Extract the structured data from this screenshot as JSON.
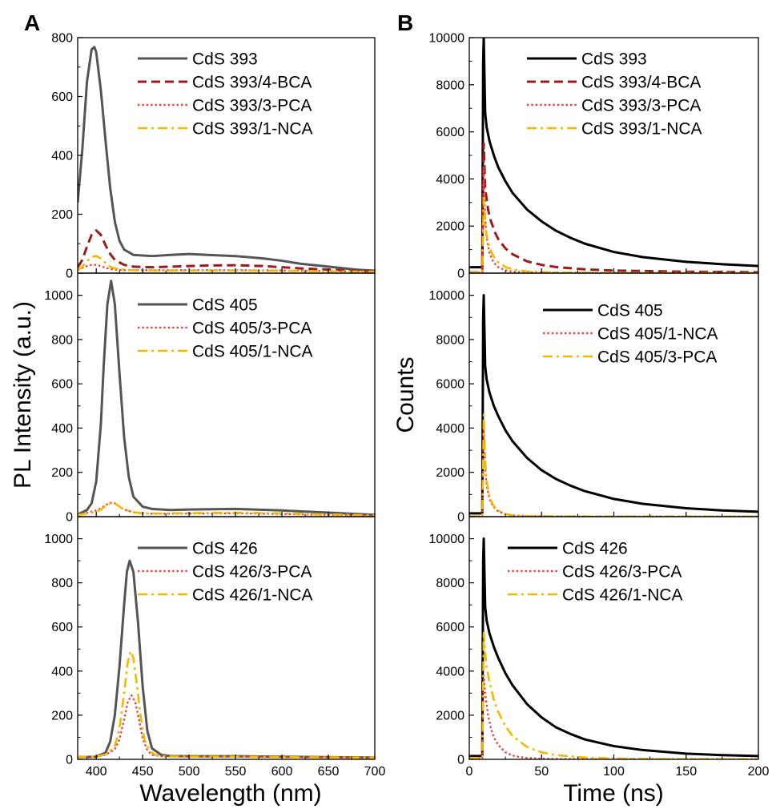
{
  "figure": {
    "panel_letters": [
      "A",
      "B"
    ],
    "left_ylabel": "PL Intensity (a.u.)",
    "right_ylabel": "Counts",
    "left_xlabel": "Wavelength (nm)",
    "right_xlabel": "Time (ns)"
  },
  "chart_data": [
    {
      "panel": "A-top",
      "type": "line",
      "xlabel": "Wavelength (nm)",
      "ylabel": "PL Intensity (a.u.)",
      "xlim": [
        380,
        700
      ],
      "ylim": [
        0,
        800
      ],
      "xticks": [
        400,
        450,
        500,
        550,
        600,
        650,
        700
      ],
      "yticks": [
        0,
        200,
        400,
        600,
        800
      ],
      "legend_position": "top-right",
      "series": [
        {
          "name": "CdS 393",
          "color": "#555555",
          "dash": "solid",
          "x": [
            380,
            385,
            390,
            395,
            398,
            400,
            405,
            410,
            415,
            420,
            425,
            430,
            440,
            460,
            480,
            500,
            520,
            550,
            580,
            600,
            620,
            650,
            680,
            700
          ],
          "y": [
            240,
            420,
            650,
            760,
            768,
            750,
            620,
            450,
            290,
            175,
            110,
            80,
            62,
            58,
            62,
            65,
            62,
            58,
            50,
            42,
            32,
            22,
            12,
            8
          ]
        },
        {
          "name": "CdS 393/4-BCA",
          "color": "#9b1c1c",
          "dash": "dash",
          "x": [
            380,
            385,
            390,
            395,
            400,
            405,
            410,
            415,
            420,
            430,
            440,
            460,
            480,
            500,
            520,
            550,
            580,
            600,
            620,
            650,
            680,
            700
          ],
          "y": [
            20,
            45,
            90,
            130,
            145,
            130,
            95,
            65,
            45,
            28,
            22,
            20,
            22,
            24,
            26,
            27,
            24,
            20,
            16,
            12,
            8,
            6
          ]
        },
        {
          "name": "CdS 393/3-PCA",
          "color": "#e8433a",
          "dash": "dot",
          "x": [
            380,
            385,
            390,
            395,
            400,
            405,
            410,
            415,
            420,
            430,
            440,
            460,
            500,
            550,
            600,
            650,
            700
          ],
          "y": [
            12,
            18,
            24,
            28,
            28,
            24,
            18,
            14,
            12,
            10,
            10,
            10,
            10,
            10,
            9,
            7,
            5
          ]
        },
        {
          "name": "CdS 393/1-NCA",
          "color": "#f5b800",
          "dash": "dashdot",
          "x": [
            380,
            385,
            390,
            395,
            400,
            405,
            410,
            415,
            420,
            430,
            440,
            460,
            500,
            550,
            600,
            650,
            700
          ],
          "y": [
            10,
            22,
            40,
            55,
            58,
            50,
            35,
            22,
            16,
            12,
            10,
            9,
            9,
            9,
            8,
            6,
            5
          ]
        }
      ]
    },
    {
      "panel": "A-middle",
      "type": "line",
      "xlabel": "Wavelength (nm)",
      "ylabel": "PL Intensity (a.u.)",
      "xlim": [
        380,
        700
      ],
      "ylim": [
        0,
        1100
      ],
      "xticks": [
        400,
        450,
        500,
        550,
        600,
        650,
        700
      ],
      "yticks": [
        0,
        200,
        400,
        600,
        800,
        1000
      ],
      "legend_position": "top-right",
      "series": [
        {
          "name": "CdS 405",
          "color": "#555555",
          "dash": "solid",
          "x": [
            380,
            390,
            395,
            400,
            405,
            408,
            412,
            416,
            420,
            425,
            430,
            435,
            440,
            450,
            460,
            480,
            500,
            550,
            600,
            650,
            680,
            700
          ],
          "y": [
            10,
            30,
            60,
            160,
            420,
            680,
            960,
            1065,
            960,
            650,
            360,
            180,
            90,
            45,
            35,
            30,
            32,
            35,
            28,
            18,
            12,
            8
          ]
        },
        {
          "name": "CdS 405/3-PCA",
          "color": "#e8433a",
          "dash": "dot",
          "x": [
            380,
            390,
            400,
            405,
            410,
            415,
            418,
            422,
            426,
            430,
            440,
            450,
            460,
            500,
            550,
            600,
            650,
            700
          ],
          "y": [
            10,
            18,
            28,
            38,
            52,
            62,
            64,
            56,
            42,
            32,
            20,
            15,
            13,
            14,
            15,
            12,
            8,
            5
          ]
        },
        {
          "name": "CdS 405/1-NCA",
          "color": "#f5b800",
          "dash": "dashdot",
          "x": [
            380,
            390,
            400,
            405,
            410,
            415,
            418,
            422,
            426,
            430,
            440,
            450,
            460,
            500,
            550,
            600,
            650,
            700
          ],
          "y": [
            8,
            14,
            22,
            32,
            48,
            60,
            62,
            55,
            42,
            32,
            20,
            15,
            14,
            16,
            18,
            15,
            10,
            6
          ]
        }
      ]
    },
    {
      "panel": "A-bottom",
      "type": "line",
      "xlabel": "Wavelength (nm)",
      "ylabel": "PL Intensity (a.u.)",
      "xlim": [
        380,
        700
      ],
      "ylim": [
        0,
        1100
      ],
      "xticks": [
        400,
        450,
        500,
        550,
        600,
        650,
        700
      ],
      "yticks": [
        0,
        200,
        400,
        600,
        800,
        1000
      ],
      "legend_position": "top-right",
      "series": [
        {
          "name": "CdS 426",
          "color": "#555555",
          "dash": "solid",
          "x": [
            380,
            400,
            410,
            415,
            420,
            425,
            430,
            433,
            436,
            440,
            445,
            450,
            455,
            460,
            470,
            480,
            500,
            550,
            600,
            650,
            700
          ],
          "y": [
            10,
            12,
            30,
            80,
            200,
            420,
            700,
            850,
            900,
            850,
            620,
            330,
            130,
            50,
            20,
            15,
            14,
            14,
            12,
            10,
            8
          ]
        },
        {
          "name": "CdS 426/3-PCA",
          "color": "#e8433a",
          "dash": "dot",
          "x": [
            380,
            400,
            410,
            420,
            425,
            430,
            434,
            438,
            442,
            446,
            450,
            455,
            460,
            470,
            480,
            500,
            550,
            600,
            650,
            700
          ],
          "y": [
            10,
            12,
            20,
            45,
            90,
            180,
            260,
            290,
            260,
            180,
            95,
            40,
            20,
            14,
            12,
            12,
            12,
            10,
            9,
            8
          ]
        },
        {
          "name": "CdS 426/1-NCA",
          "color": "#f5b800",
          "dash": "dashdot",
          "x": [
            380,
            400,
            410,
            420,
            425,
            430,
            434,
            437,
            440,
            444,
            448,
            452,
            458,
            465,
            475,
            500,
            550,
            600,
            650,
            700
          ],
          "y": [
            10,
            12,
            22,
            60,
            140,
            300,
            440,
            490,
            460,
            330,
            190,
            90,
            35,
            18,
            13,
            12,
            12,
            10,
            9,
            8
          ]
        }
      ]
    },
    {
      "panel": "B-top",
      "type": "line",
      "xlabel": "Time (ns)",
      "ylabel": "Counts",
      "xlim": [
        0,
        200
      ],
      "ylim": [
        0,
        10000
      ],
      "xticks": [
        0,
        50,
        100,
        150,
        200
      ],
      "yticks": [
        0,
        2000,
        4000,
        6000,
        8000,
        10000
      ],
      "legend_position": "top-right",
      "series": [
        {
          "name": "CdS 393",
          "color": "#000000",
          "dash": "solid",
          "x": [
            0,
            9,
            9.6,
            10,
            11,
            12,
            14,
            17,
            20,
            25,
            30,
            40,
            50,
            60,
            70,
            80,
            100,
            120,
            150,
            175,
            200
          ],
          "y": [
            250,
            250,
            9000,
            10000,
            6800,
            6200,
            5600,
            5000,
            4500,
            3900,
            3400,
            2700,
            2200,
            1800,
            1500,
            1250,
            900,
            680,
            480,
            380,
            300
          ]
        },
        {
          "name": "CdS 393/4-BCA",
          "color": "#9b1c1c",
          "dash": "dash",
          "x": [
            0,
            9,
            10,
            11,
            13,
            15,
            18,
            20,
            25,
            30,
            40,
            50,
            60,
            80,
            100,
            150,
            200
          ],
          "y": [
            30,
            30,
            5500,
            3600,
            2700,
            2200,
            1700,
            1450,
            1050,
            800,
            500,
            350,
            260,
            160,
            110,
            60,
            40
          ]
        },
        {
          "name": "CdS 393/3-PCA",
          "color": "#e8433a",
          "dash": "dot",
          "x": [
            0,
            9,
            10,
            11,
            12,
            14,
            16,
            18,
            20,
            25,
            30,
            40,
            60,
            100,
            150,
            200
          ],
          "y": [
            20,
            20,
            4500,
            2400,
            1500,
            850,
            560,
            380,
            260,
            120,
            60,
            30,
            15,
            8,
            5,
            4
          ]
        },
        {
          "name": "CdS 393/1-NCA",
          "color": "#f5b800",
          "dash": "dashdot",
          "x": [
            0,
            9,
            10,
            11,
            12,
            14,
            16,
            18,
            20,
            25,
            30,
            40,
            60,
            100,
            150,
            200
          ],
          "y": [
            25,
            25,
            3200,
            2100,
            1600,
            1100,
            800,
            600,
            470,
            260,
            160,
            70,
            25,
            10,
            6,
            4
          ]
        }
      ]
    },
    {
      "panel": "B-middle",
      "type": "line",
      "xlabel": "Time (ns)",
      "ylabel": "Counts",
      "xlim": [
        0,
        200
      ],
      "ylim": [
        0,
        11000
      ],
      "xticks": [
        0,
        50,
        100,
        150,
        200
      ],
      "yticks": [
        0,
        2000,
        4000,
        6000,
        8000,
        10000
      ],
      "legend_position": "top-right",
      "series": [
        {
          "name": "CdS 405",
          "color": "#000000",
          "dash": "solid",
          "x": [
            0,
            9,
            9.6,
            10,
            11,
            12,
            14,
            17,
            20,
            25,
            30,
            40,
            50,
            60,
            70,
            80,
            100,
            120,
            150,
            175,
            200
          ],
          "y": [
            150,
            150,
            9000,
            10000,
            6800,
            6200,
            5600,
            5000,
            4550,
            3900,
            3400,
            2650,
            2100,
            1700,
            1400,
            1150,
            800,
            580,
            380,
            280,
            220
          ]
        },
        {
          "name": "CdS 405/1-NCA",
          "color": "#e8433a",
          "dash": "dot",
          "x": [
            0,
            9,
            10,
            11,
            12,
            14,
            16,
            18,
            20,
            25,
            30,
            40,
            60,
            100,
            150,
            200
          ],
          "y": [
            15,
            15,
            4000,
            2200,
            1400,
            800,
            520,
            350,
            240,
            110,
            55,
            25,
            12,
            7,
            5,
            4
          ]
        },
        {
          "name": "CdS 405/3-PCA",
          "color": "#f5b800",
          "dash": "dashdot",
          "x": [
            0,
            9,
            10,
            11,
            12,
            14,
            16,
            18,
            20,
            25,
            30,
            40,
            60,
            100,
            150,
            200
          ],
          "y": [
            15,
            15,
            4600,
            2500,
            1600,
            900,
            580,
            390,
            270,
            120,
            60,
            28,
            13,
            7,
            5,
            4
          ]
        }
      ]
    },
    {
      "panel": "B-bottom",
      "type": "line",
      "xlabel": "Time (ns)",
      "ylabel": "Counts",
      "xlim": [
        0,
        200
      ],
      "ylim": [
        0,
        11000
      ],
      "xticks": [
        0,
        50,
        100,
        150,
        200
      ],
      "yticks": [
        0,
        2000,
        4000,
        6000,
        8000,
        10000
      ],
      "legend_position": "top-right",
      "series": [
        {
          "name": "CdS 426",
          "color": "#000000",
          "dash": "solid",
          "x": [
            0,
            9,
            9.6,
            10,
            11,
            12,
            14,
            17,
            20,
            25,
            30,
            40,
            50,
            60,
            70,
            80,
            100,
            120,
            150,
            175,
            200
          ],
          "y": [
            150,
            150,
            9000,
            10000,
            6900,
            6300,
            5700,
            5100,
            4600,
            3900,
            3350,
            2500,
            1900,
            1450,
            1150,
            900,
            600,
            420,
            260,
            190,
            150
          ]
        },
        {
          "name": "CdS 426/3-PCA",
          "color": "#e8433a",
          "dash": "dot",
          "x": [
            0,
            9,
            10,
            11,
            12,
            13,
            15,
            17,
            20,
            25,
            30,
            35,
            40,
            50,
            60,
            80,
            100,
            150,
            200
          ],
          "y": [
            40,
            40,
            3800,
            3000,
            2500,
            2000,
            1400,
            1000,
            650,
            320,
            170,
            100,
            60,
            30,
            18,
            10,
            7,
            5,
            4
          ]
        },
        {
          "name": "CdS 426/1-NCA",
          "color": "#f5b800",
          "dash": "dashdot",
          "x": [
            0,
            9,
            10,
            11,
            12,
            14,
            17,
            20,
            25,
            30,
            40,
            50,
            60,
            80,
            100,
            120,
            150,
            200
          ],
          "y": [
            60,
            60,
            5800,
            4800,
            4200,
            3500,
            2700,
            2150,
            1500,
            1050,
            560,
            320,
            190,
            80,
            40,
            22,
            12,
            6
          ]
        }
      ]
    }
  ]
}
